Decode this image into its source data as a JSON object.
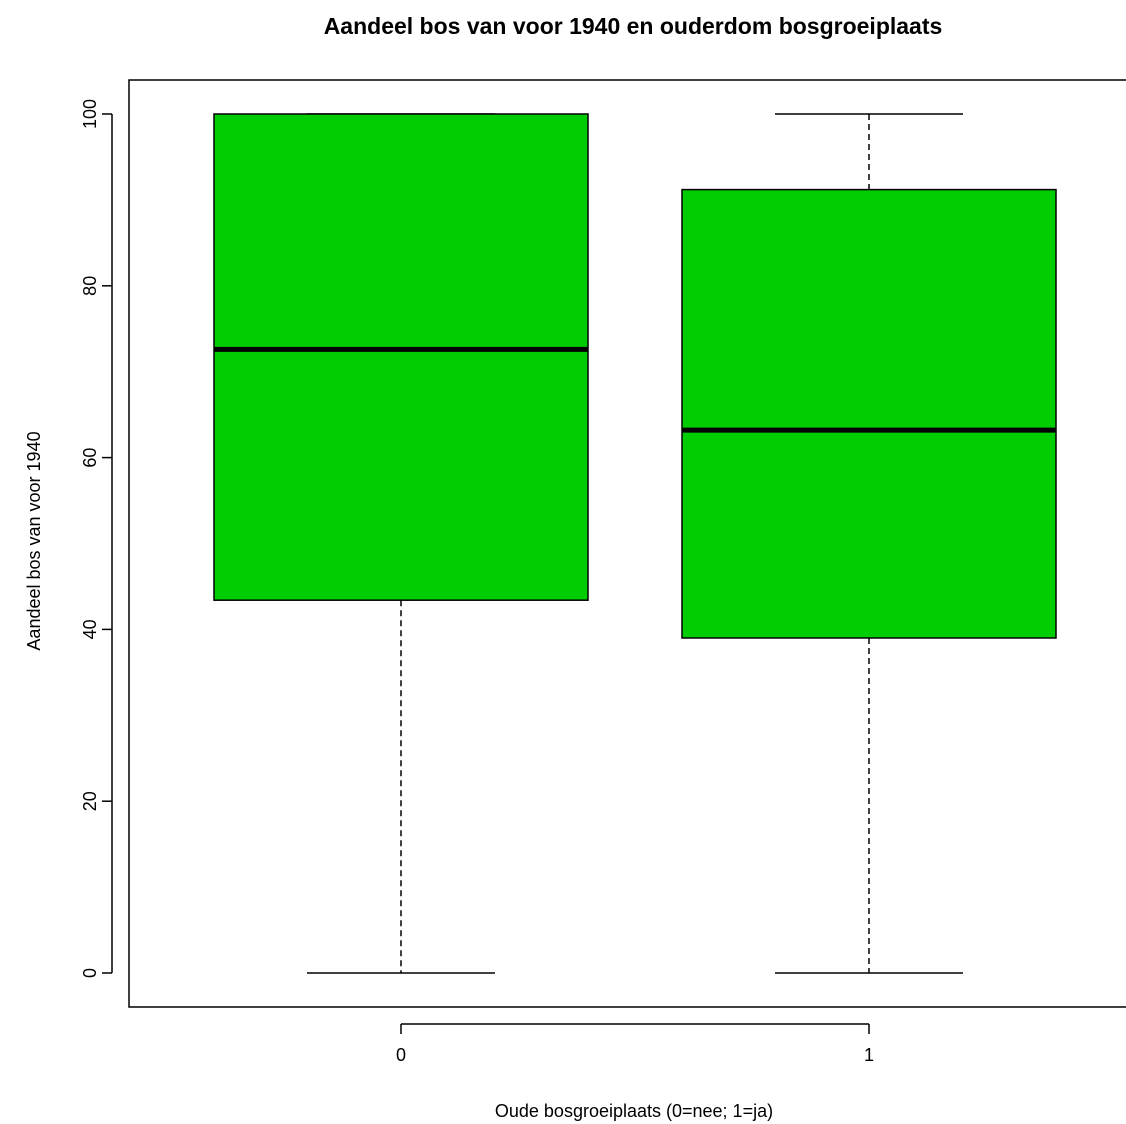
{
  "chart_data": {
    "type": "boxplot",
    "title": "Aandeel bos van voor 1940 en ouderdom bosgroeiplaats",
    "xlabel": "Oude bosgroeiplaats (0=nee; 1=ja)",
    "ylabel": "Aandeel bos van voor 1940",
    "categories": [
      "0",
      "1"
    ],
    "boxes": [
      {
        "category": "0",
        "min": 0,
        "q1": 43.4,
        "median": 72.6,
        "q3": 100,
        "max": 100
      },
      {
        "category": "1",
        "min": 0,
        "q1": 39,
        "median": 63.2,
        "q3": 91.2,
        "max": 100
      }
    ],
    "yticks": [
      0,
      20,
      40,
      60,
      80,
      100
    ],
    "ylim": [
      -4,
      104
    ],
    "box_color": "#00cd00",
    "grid": false
  }
}
